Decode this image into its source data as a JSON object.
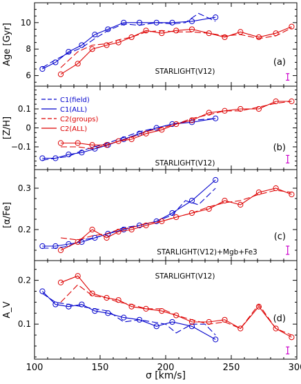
{
  "figure": {
    "xlabel": "σ [km/s]",
    "x_ticks": [
      100,
      150,
      200,
      250,
      300
    ],
    "xlim": [
      100,
      300
    ],
    "colors": {
      "C1": "#0000cc",
      "C2": "#dd0000",
      "errorbar": "#cc00cc"
    }
  },
  "legend": [
    {
      "label": "C1(field)",
      "color": "#0000cc",
      "style": "dashed"
    },
    {
      "label": "C1(ALL)",
      "color": "#0000cc",
      "style": "solid"
    },
    {
      "label": "C2(groups)",
      "color": "#dd0000",
      "style": "dashed"
    },
    {
      "label": "C2(ALL)",
      "color": "#dd0000",
      "style": "solid"
    }
  ],
  "chart_data": [
    {
      "type": "line",
      "ylabel": "Age [Gyr]",
      "tag": "(a)",
      "annotation": "STARLIGHT(V12)",
      "ylim": [
        5.2,
        11.5
      ],
      "y_ticks": [
        6,
        8,
        10
      ],
      "errorbar": {
        "x": 293,
        "y": 5.9,
        "half_height": 0.25
      },
      "series": [
        {
          "key": "C1",
          "style": "solid",
          "markers": true,
          "x": [
            106,
            116,
            126,
            136,
            146,
            156,
            168,
            180,
            193,
            205,
            220,
            238
          ],
          "y": [
            6.5,
            7.0,
            7.8,
            8.3,
            9.1,
            9.5,
            10.0,
            10.0,
            10.0,
            10.0,
            10.1,
            10.4
          ]
        },
        {
          "key": "C1",
          "style": "dashed",
          "markers": false,
          "x": [
            106,
            116,
            126,
            136,
            146,
            156,
            168,
            180,
            193,
            205,
            215,
            225,
            238
          ],
          "y": [
            6.6,
            7.2,
            7.7,
            8.1,
            8.8,
            9.4,
            9.9,
            9.8,
            10.0,
            9.9,
            10.0,
            10.7,
            10.1
          ]
        },
        {
          "key": "C2",
          "style": "solid",
          "markers": true,
          "x": [
            120,
            133,
            144,
            155,
            164,
            174,
            185,
            197,
            208,
            220,
            233,
            245,
            257,
            271,
            284,
            296
          ],
          "y": [
            6.1,
            6.9,
            8.0,
            8.3,
            8.5,
            8.9,
            9.4,
            9.2,
            9.4,
            9.5,
            9.2,
            8.9,
            9.3,
            8.9,
            9.2,
            9.7
          ]
        },
        {
          "key": "C2",
          "style": "dashed",
          "markers": false,
          "x": [
            120,
            133,
            144,
            155,
            164,
            174,
            185,
            197,
            208,
            220,
            233,
            245,
            257,
            271,
            284,
            296
          ],
          "y": [
            6.6,
            7.8,
            8.3,
            8.4,
            8.7,
            8.9,
            9.3,
            9.4,
            9.3,
            9.3,
            9.2,
            9.0,
            9.1,
            8.8,
            9.0,
            9.6
          ]
        }
      ]
    },
    {
      "type": "line",
      "ylabel": "[Z/H]",
      "tag": "(b)",
      "annotation": "STARLIGHT(V12)",
      "ylim": [
        -0.22,
        0.22
      ],
      "y_ticks": [
        -0.1,
        0,
        0.1
      ],
      "errorbar": {
        "x": 293,
        "y": -0.165,
        "half_height": 0.02
      },
      "series": [
        {
          "key": "C1",
          "style": "solid",
          "markers": true,
          "x": [
            106,
            116,
            126,
            136,
            146,
            156,
            168,
            180,
            193,
            205,
            220,
            238
          ],
          "y": [
            -0.16,
            -0.16,
            -0.14,
            -0.13,
            -0.11,
            -0.09,
            -0.06,
            -0.03,
            0.0,
            0.02,
            0.03,
            0.05
          ]
        },
        {
          "key": "C1",
          "style": "dashed",
          "markers": false,
          "x": [
            106,
            116,
            126,
            136,
            146,
            156,
            168,
            180,
            193,
            205,
            220,
            238
          ],
          "y": [
            -0.17,
            -0.16,
            -0.15,
            -0.12,
            -0.1,
            -0.08,
            -0.05,
            -0.02,
            0.0,
            0.02,
            0.04,
            0.05
          ]
        },
        {
          "key": "C2",
          "style": "solid",
          "markers": true,
          "x": [
            120,
            133,
            144,
            155,
            164,
            174,
            185,
            197,
            208,
            220,
            233,
            245,
            257,
            271,
            284,
            296
          ],
          "y": [
            -0.08,
            -0.08,
            -0.09,
            -0.09,
            -0.07,
            -0.06,
            -0.03,
            -0.01,
            0.02,
            0.04,
            0.08,
            0.09,
            0.1,
            0.1,
            0.14,
            0.14
          ]
        },
        {
          "key": "C2",
          "style": "dashed",
          "markers": false,
          "x": [
            120,
            133,
            144,
            155,
            164,
            174,
            185,
            197,
            208,
            220,
            233,
            245,
            257,
            271,
            284,
            296
          ],
          "y": [
            -0.1,
            -0.1,
            -0.11,
            -0.09,
            -0.07,
            -0.05,
            -0.02,
            0.0,
            0.02,
            0.05,
            0.07,
            0.09,
            0.09,
            0.11,
            0.13,
            0.14
          ]
        }
      ]
    },
    {
      "type": "line",
      "ylabel": "[α/Fe]",
      "tag": "(c)",
      "annotation": "STARLIGHT(V12)+Mgb+Fe3",
      "ylim": [
        0.125,
        0.345
      ],
      "y_ticks": [
        0.2,
        0.3
      ],
      "errorbar": {
        "x": 293,
        "y": 0.15,
        "half_height": 0.01
      },
      "series": [
        {
          "key": "C1",
          "style": "solid",
          "markers": true,
          "x": [
            106,
            116,
            126,
            136,
            146,
            156,
            168,
            180,
            193,
            205,
            220,
            238
          ],
          "y": [
            0.16,
            0.16,
            0.165,
            0.17,
            0.18,
            0.19,
            0.2,
            0.21,
            0.22,
            0.24,
            0.27,
            0.32
          ]
        },
        {
          "key": "C1",
          "style": "dashed",
          "markers": false,
          "x": [
            106,
            116,
            126,
            136,
            146,
            156,
            168,
            180,
            193,
            205,
            215,
            225,
            238
          ],
          "y": [
            0.155,
            0.155,
            0.16,
            0.175,
            0.18,
            0.19,
            0.205,
            0.21,
            0.22,
            0.235,
            0.27,
            0.26,
            0.3
          ]
        },
        {
          "key": "C2",
          "style": "solid",
          "markers": true,
          "x": [
            120,
            133,
            144,
            155,
            164,
            174,
            185,
            197,
            208,
            220,
            233,
            245,
            257,
            271,
            284,
            296
          ],
          "y": [
            0.15,
            0.17,
            0.2,
            0.18,
            0.195,
            0.2,
            0.21,
            0.22,
            0.23,
            0.24,
            0.25,
            0.27,
            0.26,
            0.29,
            0.3,
            0.285
          ]
        },
        {
          "key": "C2",
          "style": "dashed",
          "markers": false,
          "x": [
            120,
            133,
            144,
            155,
            164,
            174,
            185,
            197,
            208,
            220,
            233,
            245,
            257,
            271,
            284,
            296
          ],
          "y": [
            0.18,
            0.175,
            0.185,
            0.19,
            0.2,
            0.205,
            0.215,
            0.22,
            0.23,
            0.24,
            0.255,
            0.265,
            0.27,
            0.285,
            0.295,
            0.29
          ]
        }
      ]
    },
    {
      "type": "line",
      "ylabel": "A_V",
      "tag": "(d)",
      "annotation": "STARLIGHT(V12)",
      "ylim": [
        0.02,
        0.245
      ],
      "y_ticks": [
        0.1,
        0.2
      ],
      "errorbar": {
        "x": 293,
        "y": 0.04,
        "half_height": 0.008
      },
      "series": [
        {
          "key": "C1",
          "style": "solid",
          "markers": true,
          "x": [
            106,
            116,
            126,
            136,
            146,
            156,
            168,
            180,
            193,
            205,
            220,
            238
          ],
          "y": [
            0.175,
            0.145,
            0.14,
            0.145,
            0.13,
            0.125,
            0.115,
            0.11,
            0.095,
            0.105,
            0.095,
            0.065
          ]
        },
        {
          "key": "C1",
          "style": "dashed",
          "markers": false,
          "x": [
            106,
            116,
            126,
            136,
            146,
            156,
            168,
            180,
            190,
            200,
            208,
            220,
            230,
            238
          ],
          "y": [
            0.17,
            0.15,
            0.145,
            0.14,
            0.135,
            0.13,
            0.105,
            0.11,
            0.105,
            0.1,
            0.08,
            0.1,
            0.1,
            0.075
          ]
        },
        {
          "key": "C2",
          "style": "solid",
          "markers": true,
          "x": [
            120,
            133,
            144,
            155,
            164,
            174,
            185,
            197,
            208,
            220,
            233,
            245,
            257,
            271,
            284,
            296
          ],
          "y": [
            0.195,
            0.21,
            0.17,
            0.16,
            0.155,
            0.14,
            0.135,
            0.13,
            0.12,
            0.105,
            0.105,
            0.11,
            0.09,
            0.14,
            0.09,
            0.07
          ]
        },
        {
          "key": "C2",
          "style": "dashed",
          "markers": false,
          "x": [
            120,
            133,
            144,
            155,
            164,
            174,
            185,
            197,
            208,
            220,
            233,
            245,
            257,
            271,
            284,
            296
          ],
          "y": [
            0.15,
            0.19,
            0.165,
            0.16,
            0.15,
            0.145,
            0.135,
            0.135,
            0.12,
            0.11,
            0.1,
            0.105,
            0.09,
            0.145,
            0.09,
            0.075
          ]
        }
      ]
    }
  ]
}
